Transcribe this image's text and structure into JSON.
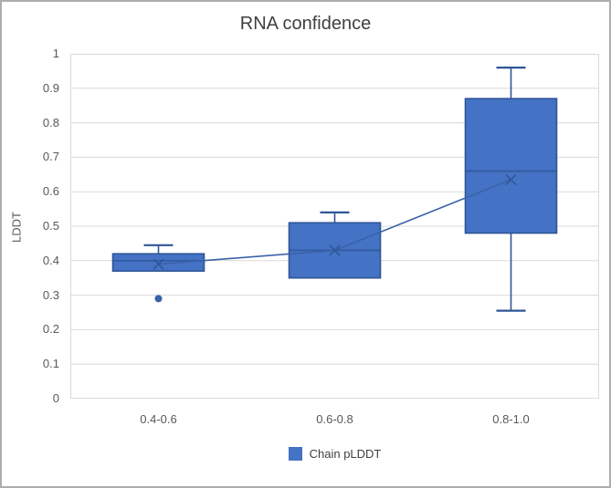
{
  "chart_data": {
    "type": "boxplot",
    "title": "RNA confidence",
    "ylabel": "LDDT",
    "legend_label": "Chain pLDDT",
    "ylim": [
      0,
      1
    ],
    "yticks": [
      {
        "label": "1",
        "value": 1.0
      },
      {
        "label": "0.9",
        "value": 0.9
      },
      {
        "label": "0.8",
        "value": 0.8
      },
      {
        "label": "0.7",
        "value": 0.7
      },
      {
        "label": "0.6",
        "value": 0.6
      },
      {
        "label": "0.5",
        "value": 0.5
      },
      {
        "label": "0.4",
        "value": 0.4
      },
      {
        "label": "0.3",
        "value": 0.3
      },
      {
        "label": "0.2",
        "value": 0.2
      },
      {
        "label": "0.1",
        "value": 0.1
      },
      {
        "label": "0",
        "value": 0.0
      }
    ],
    "categories": [
      "0.4-0.6",
      "0.6-0.8",
      "0.8-1.0"
    ],
    "series_name": "Chain pLDDT",
    "boxes": [
      {
        "category": "0.4-0.6",
        "whisker_low": 0.37,
        "q1": 0.37,
        "median": 0.4,
        "q3": 0.42,
        "whisker_high": 0.445,
        "mean": 0.39,
        "outliers": [
          0.29
        ]
      },
      {
        "category": "0.6-0.8",
        "whisker_low": 0.35,
        "q1": 0.35,
        "median": 0.43,
        "q3": 0.51,
        "whisker_high": 0.54,
        "mean": 0.43,
        "outliers": []
      },
      {
        "category": "0.8-1.0",
        "whisker_low": 0.255,
        "q1": 0.48,
        "median": 0.66,
        "q3": 0.87,
        "whisker_high": 0.96,
        "mean": 0.635,
        "outliers": []
      }
    ],
    "mean_marker": "x",
    "mean_line": true,
    "grid": "horizontal",
    "legend_position": "bottom",
    "colors": {
      "box_fill": "#4472C4",
      "box_stroke": "#2F5597",
      "line": "#3A62A7",
      "grid": "#D9D9D9"
    }
  }
}
